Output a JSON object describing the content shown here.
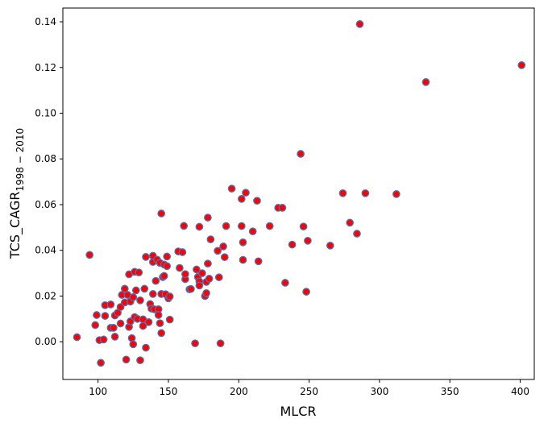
{
  "chart_data": {
    "type": "scatter",
    "title": "",
    "xlabel": "MLCR",
    "ylabel_main": "TCS_CAGR",
    "ylabel_sub": "1998 − 2010",
    "xlim": [
      75,
      410
    ],
    "ylim": [
      -0.0165,
      0.146
    ],
    "xticks": [
      100,
      150,
      200,
      250,
      300,
      350,
      400
    ],
    "yticks": [
      0.0,
      0.02,
      0.04,
      0.06,
      0.08,
      0.1,
      0.12,
      0.14
    ],
    "xtick_labels": [
      "100",
      "150",
      "200",
      "250",
      "300",
      "350",
      "400"
    ],
    "ytick_labels": [
      "0.00",
      "0.02",
      "0.04",
      "0.06",
      "0.08",
      "0.10",
      "0.12",
      "0.14"
    ],
    "marker_face_color": "#ff0000",
    "marker_edge_color": "#4a74b8",
    "grid": false,
    "points": [
      {
        "x": 85,
        "y": 0.002
      },
      {
        "x": 94,
        "y": 0.038
      },
      {
        "x": 98,
        "y": 0.0073
      },
      {
        "x": 99,
        "y": 0.0117
      },
      {
        "x": 101,
        "y": 0.0007
      },
      {
        "x": 102,
        "y": -0.0092
      },
      {
        "x": 104,
        "y": 0.001
      },
      {
        "x": 105,
        "y": 0.0113
      },
      {
        "x": 105,
        "y": 0.016
      },
      {
        "x": 109,
        "y": 0.0061
      },
      {
        "x": 109,
        "y": 0.0163
      },
      {
        "x": 111,
        "y": 0.0061
      },
      {
        "x": 112,
        "y": 0.0022
      },
      {
        "x": 112,
        "y": 0.0115
      },
      {
        "x": 114,
        "y": 0.0127
      },
      {
        "x": 116,
        "y": 0.008
      },
      {
        "x": 116,
        "y": 0.0152
      },
      {
        "x": 117,
        "y": 0.0205
      },
      {
        "x": 119,
        "y": 0.0172
      },
      {
        "x": 119,
        "y": 0.0232
      },
      {
        "x": 120,
        "y": -0.0078
      },
      {
        "x": 121,
        "y": 0.0205
      },
      {
        "x": 122,
        "y": 0.0295
      },
      {
        "x": 122,
        "y": 0.0065
      },
      {
        "x": 123,
        "y": 0.0089
      },
      {
        "x": 123,
        "y": 0.0176
      },
      {
        "x": 124,
        "y": 0.0016
      },
      {
        "x": 125,
        "y": 0.0195
      },
      {
        "x": 125,
        "y": -0.0011
      },
      {
        "x": 126,
        "y": 0.0306
      },
      {
        "x": 126,
        "y": 0.0108
      },
      {
        "x": 127,
        "y": 0.0225
      },
      {
        "x": 128,
        "y": 0.01
      },
      {
        "x": 129,
        "y": 0.0303
      },
      {
        "x": 130,
        "y": 0.0181
      },
      {
        "x": 130,
        "y": -0.0081
      },
      {
        "x": 132,
        "y": 0.0098
      },
      {
        "x": 132,
        "y": 0.0069
      },
      {
        "x": 133,
        "y": 0.0232
      },
      {
        "x": 134,
        "y": 0.0371
      },
      {
        "x": 134,
        "y": -0.0026
      },
      {
        "x": 136,
        "y": 0.0086
      },
      {
        "x": 137,
        "y": 0.0165
      },
      {
        "x": 138,
        "y": 0.0145
      },
      {
        "x": 139,
        "y": 0.0349
      },
      {
        "x": 139,
        "y": 0.0376
      },
      {
        "x": 139,
        "y": 0.0209
      },
      {
        "x": 140,
        "y": 0.0142
      },
      {
        "x": 141,
        "y": 0.0266
      },
      {
        "x": 142,
        "y": 0.0359
      },
      {
        "x": 143,
        "y": 0.0142
      },
      {
        "x": 143,
        "y": 0.0117
      },
      {
        "x": 144,
        "y": 0.0081
      },
      {
        "x": 144,
        "y": 0.0345
      },
      {
        "x": 145,
        "y": 0.0561
      },
      {
        "x": 145,
        "y": 0.0038
      },
      {
        "x": 145,
        "y": 0.0209
      },
      {
        "x": 146,
        "y": 0.0283
      },
      {
        "x": 147,
        "y": 0.0338
      },
      {
        "x": 147,
        "y": 0.0288
      },
      {
        "x": 148,
        "y": 0.0208
      },
      {
        "x": 149,
        "y": 0.0373
      },
      {
        "x": 149,
        "y": 0.0331
      },
      {
        "x": 150,
        "y": 0.019
      },
      {
        "x": 151,
        "y": 0.0097
      },
      {
        "x": 151,
        "y": 0.0198
      },
      {
        "x": 157,
        "y": 0.0395
      },
      {
        "x": 158,
        "y": 0.0323
      },
      {
        "x": 160,
        "y": 0.0392
      },
      {
        "x": 161,
        "y": 0.0507
      },
      {
        "x": 162,
        "y": 0.0274
      },
      {
        "x": 162,
        "y": 0.0296
      },
      {
        "x": 165,
        "y": 0.0229
      },
      {
        "x": 166,
        "y": 0.0231
      },
      {
        "x": 169,
        "y": -0.0007
      },
      {
        "x": 170,
        "y": 0.0316
      },
      {
        "x": 171,
        "y": 0.0283
      },
      {
        "x": 172,
        "y": 0.0503
      },
      {
        "x": 172,
        "y": 0.0264
      },
      {
        "x": 172,
        "y": 0.0246
      },
      {
        "x": 174,
        "y": 0.03
      },
      {
        "x": 176,
        "y": 0.02
      },
      {
        "x": 177,
        "y": 0.0262
      },
      {
        "x": 177,
        "y": 0.0213
      },
      {
        "x": 178,
        "y": 0.0342
      },
      {
        "x": 178,
        "y": 0.0543
      },
      {
        "x": 179,
        "y": 0.0276
      },
      {
        "x": 180,
        "y": 0.0448
      },
      {
        "x": 185,
        "y": 0.0398
      },
      {
        "x": 186,
        "y": 0.0282
      },
      {
        "x": 187,
        "y": -0.0007
      },
      {
        "x": 189,
        "y": 0.0417
      },
      {
        "x": 190,
        "y": 0.037
      },
      {
        "x": 191,
        "y": 0.0506
      },
      {
        "x": 195,
        "y": 0.067
      },
      {
        "x": 202,
        "y": 0.0506
      },
      {
        "x": 202,
        "y": 0.0625
      },
      {
        "x": 203,
        "y": 0.0435
      },
      {
        "x": 203,
        "y": 0.0358
      },
      {
        "x": 205,
        "y": 0.0652
      },
      {
        "x": 210,
        "y": 0.0483
      },
      {
        "x": 213,
        "y": 0.0617
      },
      {
        "x": 214,
        "y": 0.0352
      },
      {
        "x": 222,
        "y": 0.0506
      },
      {
        "x": 228,
        "y": 0.0586
      },
      {
        "x": 231,
        "y": 0.0586
      },
      {
        "x": 233,
        "y": 0.0258
      },
      {
        "x": 238,
        "y": 0.0425
      },
      {
        "x": 244,
        "y": 0.0822
      },
      {
        "x": 246,
        "y": 0.0504
      },
      {
        "x": 248,
        "y": 0.0219
      },
      {
        "x": 249,
        "y": 0.0442
      },
      {
        "x": 265,
        "y": 0.0421
      },
      {
        "x": 274,
        "y": 0.065
      },
      {
        "x": 279,
        "y": 0.0521
      },
      {
        "x": 284,
        "y": 0.0473
      },
      {
        "x": 286,
        "y": 0.139
      },
      {
        "x": 290,
        "y": 0.065
      },
      {
        "x": 312,
        "y": 0.0646
      },
      {
        "x": 333,
        "y": 0.1136
      },
      {
        "x": 401,
        "y": 0.121
      }
    ]
  }
}
